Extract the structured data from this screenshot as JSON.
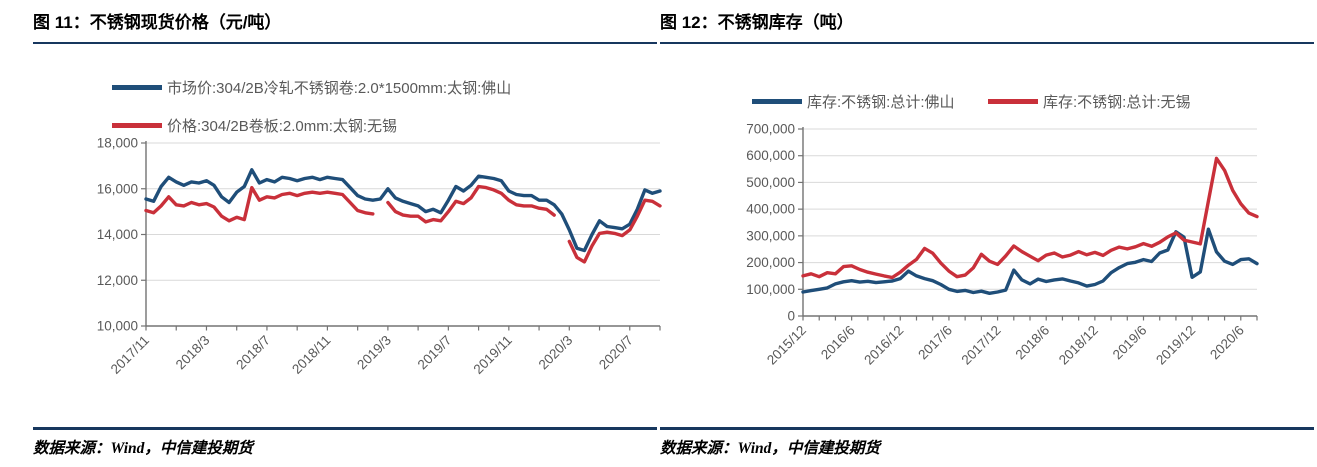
{
  "styles": {
    "background": "#FFFFFF",
    "accent_rule": "#17375E",
    "grid": "#D9D9D9",
    "axis": "#737373",
    "tick_text": "#595959",
    "legend_text": "#595959",
    "title_text": "#000000",
    "series_blue": "#1F4E79",
    "series_red": "#C9303A"
  },
  "chart_data": [
    {
      "type": "line",
      "panel": "left",
      "title": "图 11：不锈钢现货价格（元/吨）",
      "source": "数据来源：Wind，中信建投期货",
      "ylim": [
        10000,
        18000
      ],
      "yticks": [
        {
          "v": 10000,
          "label": "10,000"
        },
        {
          "v": 12000,
          "label": "12,000"
        },
        {
          "v": 14000,
          "label": "14,000"
        },
        {
          "v": 16000,
          "label": "16,000"
        },
        {
          "v": 18000,
          "label": "18,000"
        }
      ],
      "x_tick_labels": [
        "2017/11",
        "2018/3",
        "2018/7",
        "2018/11",
        "2019/3",
        "2019/7",
        "2019/11",
        "2020/3",
        "2020/7"
      ],
      "x_label_every_months": 4,
      "x_minor_tick_every_months": 2,
      "months_total": 34,
      "month_step_per_point": 0.5,
      "grid_on": true,
      "legend_position": "top-stacked",
      "series": [
        {
          "name": "市场价:304/2B冷轧不锈钢卷:2.0*1500mm:太钢:佛山",
          "color": "#1F4E79",
          "values": [
            15550,
            15450,
            16100,
            16500,
            16300,
            16150,
            16300,
            16250,
            16350,
            16150,
            15650,
            15400,
            15850,
            16100,
            16830,
            16250,
            16400,
            16300,
            16500,
            16450,
            16350,
            16450,
            16500,
            16400,
            16500,
            16450,
            16400,
            16050,
            15700,
            15550,
            15500,
            15550,
            16000,
            15600,
            15450,
            15350,
            15250,
            15000,
            15100,
            14950,
            15500,
            16100,
            15900,
            16150,
            16550,
            16500,
            16450,
            16350,
            15900,
            15750,
            15700,
            15700,
            15500,
            15500,
            15300,
            14900,
            14200,
            13400,
            13300,
            14000,
            14600,
            14350,
            14300,
            14250,
            14450,
            15100,
            15950,
            15800,
            15900
          ]
        },
        {
          "name": "价格:304/2B卷板:2.0mm:太钢:无锡",
          "color": "#C9303A",
          "values": [
            15050,
            14950,
            15250,
            15650,
            15300,
            15250,
            15400,
            15300,
            15350,
            15200,
            14800,
            14600,
            14750,
            14650,
            16050,
            15500,
            15650,
            15600,
            15750,
            15800,
            15700,
            15800,
            15850,
            15800,
            15850,
            15800,
            15750,
            15400,
            15050,
            14950,
            14900,
            null,
            15400,
            15000,
            14850,
            14800,
            14800,
            14550,
            14650,
            14600,
            15000,
            15450,
            15350,
            15600,
            16100,
            16050,
            15950,
            15800,
            15500,
            15300,
            15250,
            15250,
            15150,
            15100,
            14850,
            null,
            13700,
            13000,
            12800,
            13500,
            14050,
            14100,
            14050,
            13950,
            14200,
            14800,
            15500,
            15450,
            15250
          ]
        }
      ]
    },
    {
      "type": "line",
      "panel": "right",
      "title": "图 12：不锈钢库存（吨）",
      "source": "数据来源：Wind，中信建投期货",
      "ylim": [
        0,
        700000
      ],
      "yticks": [
        {
          "v": 0,
          "label": "0"
        },
        {
          "v": 100000,
          "label": "100,000"
        },
        {
          "v": 200000,
          "label": "200,000"
        },
        {
          "v": 300000,
          "label": "300,000"
        },
        {
          "v": 400000,
          "label": "400,000"
        },
        {
          "v": 500000,
          "label": "500,000"
        },
        {
          "v": 600000,
          "label": "600,000"
        },
        {
          "v": 700000,
          "label": "700,000"
        }
      ],
      "x_tick_labels": [
        "2015/12",
        "2016/6",
        "2016/12",
        "2017/6",
        "2017/12",
        "2018/6",
        "2018/12",
        "2019/6",
        "2019/12",
        "2020/6"
      ],
      "x_label_every_months": 6,
      "x_minor_tick_every_months": 2,
      "months_total": 56,
      "month_step_per_point": 1,
      "grid_on": true,
      "legend_position": "top-row",
      "series": [
        {
          "name": "库存:不锈钢:总计:佛山",
          "color": "#1F4E79",
          "values": [
            90000,
            95000,
            100000,
            105000,
            120000,
            128000,
            132000,
            127000,
            130000,
            125000,
            128000,
            131000,
            140000,
            168000,
            150000,
            140000,
            132000,
            118000,
            100000,
            92000,
            96000,
            88000,
            93000,
            85000,
            90000,
            97000,
            172000,
            135000,
            120000,
            138000,
            129000,
            135000,
            139000,
            131000,
            124000,
            112000,
            118000,
            131000,
            162000,
            181000,
            196000,
            201000,
            211000,
            204000,
            236000,
            247000,
            315000,
            295000,
            145000,
            165000,
            325000,
            240000,
            205000,
            193000,
            211000,
            214000,
            196000
          ]
        },
        {
          "name": "库存:不锈钢:总计:无锡",
          "color": "#C9303A",
          "values": [
            150000,
            158000,
            147000,
            162000,
            158000,
            185000,
            188000,
            174000,
            164000,
            157000,
            150000,
            144000,
            164000,
            190000,
            212000,
            253000,
            235000,
            198000,
            168000,
            147000,
            153000,
            180000,
            231000,
            205000,
            193000,
            225000,
            262000,
            241000,
            224000,
            207000,
            228000,
            236000,
            221000,
            228000,
            241000,
            229000,
            238000,
            227000,
            246000,
            258000,
            251000,
            259000,
            271000,
            261000,
            276000,
            296000,
            311000,
            284000,
            277000,
            270000,
            430000,
            590000,
            545000,
            470000,
            420000,
            385000,
            372000
          ]
        }
      ]
    }
  ]
}
